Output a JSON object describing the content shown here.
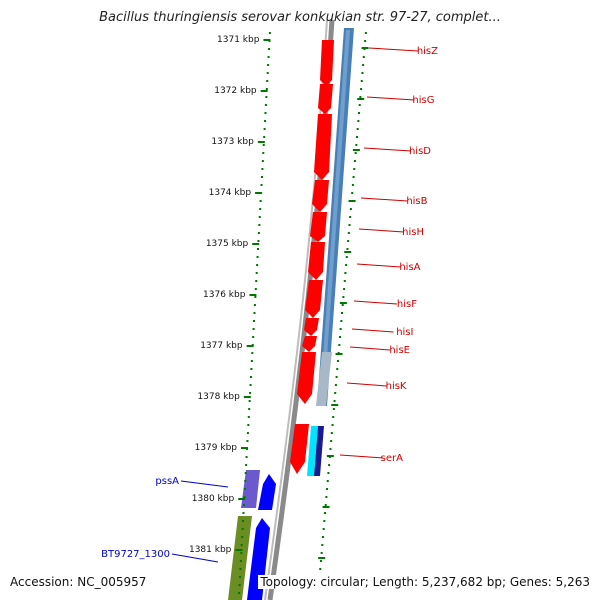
{
  "title": "Bacillus thuringiensis serovar konkukian str. 97-27, complet...",
  "accession": "Accession: NC_005957",
  "topology": "Topology: circular; Length: 5,237,682 bp; Genes: 5,263",
  "ticks": [
    "1371 kbp",
    "1372 kbp",
    "1373 kbp",
    "1374 kbp",
    "1375 kbp",
    "1376 kbp",
    "1377 kbp",
    "1378 kbp",
    "1379 kbp",
    "1380 kbp",
    "1381 kbp"
  ],
  "genes_right": [
    {
      "name": "hisZ",
      "color": "#cc0000"
    },
    {
      "name": "hisG",
      "color": "#cc0000"
    },
    {
      "name": "hisD",
      "color": "#cc0000"
    },
    {
      "name": "hisB",
      "color": "#cc0000"
    },
    {
      "name": "hisH",
      "color": "#cc0000"
    },
    {
      "name": "hisA",
      "color": "#cc0000"
    },
    {
      "name": "hisF",
      "color": "#cc0000"
    },
    {
      "name": "hisI",
      "color": "#cc0000"
    },
    {
      "name": "hisE",
      "color": "#cc0000"
    },
    {
      "name": "hisK",
      "color": "#cc0000"
    },
    {
      "name": "serA",
      "color": "#cc0000"
    }
  ],
  "genes_left": [
    {
      "name": "pssA",
      "color": "#0000cc"
    },
    {
      "name": "BT9727_1300",
      "color": "#0000cc"
    }
  ],
  "colors": {
    "tick": "#007700",
    "backbone": "#888888",
    "cds_forward": "#ff0000",
    "cds_reverse": "#0000ff",
    "blast_blue": "#4a7fb5",
    "olive": "#6b8e23",
    "purple": "#6a5acd",
    "cyan": "#00e5ff"
  }
}
